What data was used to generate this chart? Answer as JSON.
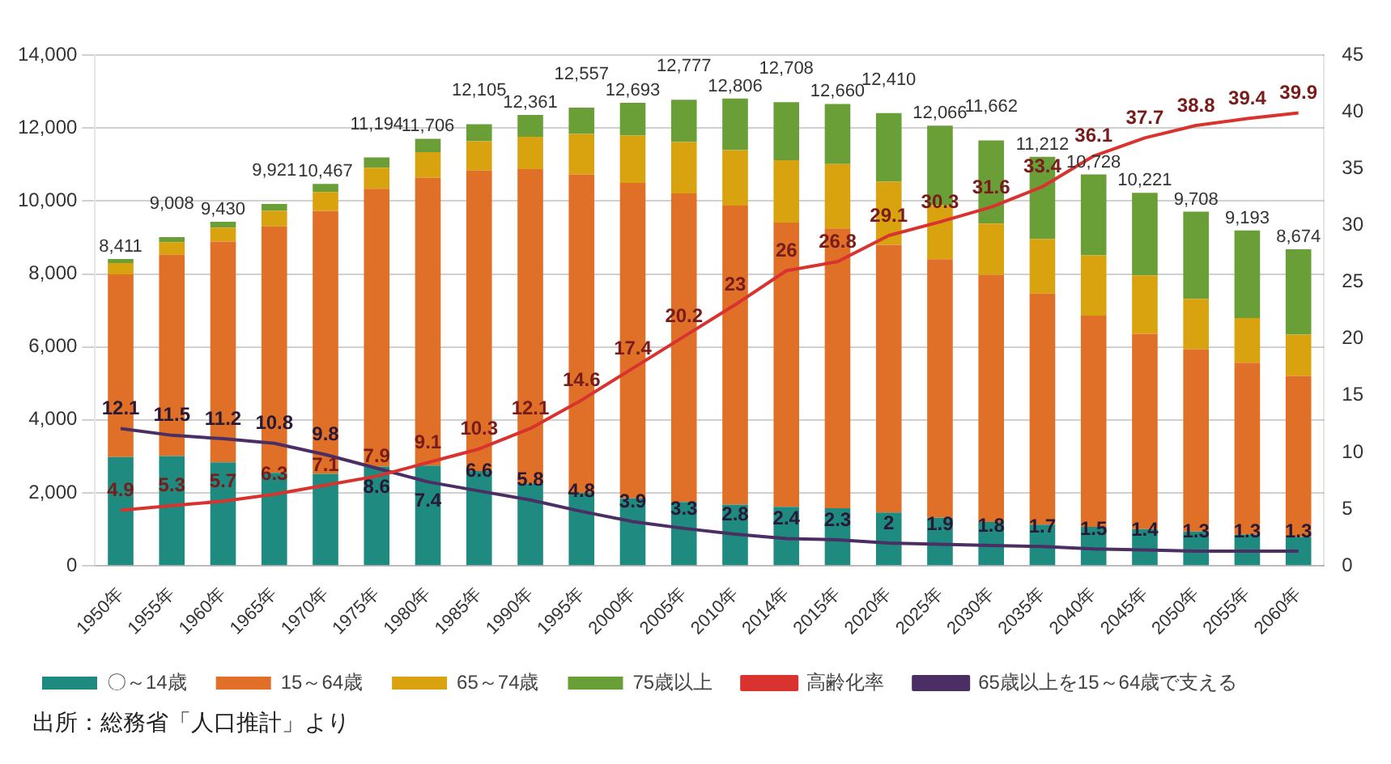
{
  "chart_data": {
    "type": "bar",
    "stacked": true,
    "categories": [
      "1950年",
      "1955年",
      "1960年",
      "1965年",
      "1970年",
      "1975年",
      "1980年",
      "1985年",
      "1990年",
      "1995年",
      "2000年",
      "2005年",
      "2010年",
      "2014年",
      "2015年",
      "2020年",
      "2025年",
      "2030年",
      "2035年",
      "2040年",
      "2045年",
      "2050年",
      "2055年",
      "2060年"
    ],
    "series": [
      {
        "name": "〇～14歳",
        "color": "#1f8a7f",
        "values": [
          2980,
          3010,
          2840,
          2550,
          2520,
          2720,
          2750,
          2600,
          2250,
          2000,
          1850,
          1750,
          1680,
          1620,
          1580,
          1460,
          1320,
          1200,
          1130,
          1070,
          1010,
          940,
          860,
          790
        ]
      },
      {
        "name": "15～64歳",
        "color": "#e07028",
        "values": [
          5011,
          5518,
          6050,
          6751,
          7207,
          7614,
          7886,
          8235,
          8621,
          8727,
          8643,
          8457,
          8196,
          7788,
          7670,
          7340,
          7086,
          6772,
          6332,
          5788,
          5351,
          4998,
          4703,
          4414
        ]
      },
      {
        "name": "65～74歳",
        "color": "#d9a20f",
        "values": [
          310,
          340,
          380,
          430,
          520,
          580,
          700,
          800,
          890,
          1110,
          1300,
          1410,
          1520,
          1710,
          1760,
          1730,
          1480,
          1410,
          1500,
          1650,
          1600,
          1380,
          1230,
          1130
        ]
      },
      {
        "name": "75歳以上",
        "color": "#6a9f38",
        "values": [
          110,
          140,
          160,
          190,
          220,
          280,
          370,
          470,
          600,
          720,
          900,
          1160,
          1410,
          1590,
          1650,
          1880,
          2180,
          2280,
          2250,
          2220,
          2260,
          2390,
          2400,
          2340
        ]
      },
      {
        "name": "高齢化率",
        "type": "line",
        "axis": "y2",
        "color": "#d8332f",
        "marker": "none",
        "values": [
          4.9,
          5.3,
          5.7,
          6.3,
          7.1,
          7.9,
          9.1,
          10.3,
          12.1,
          14.6,
          17.4,
          20.2,
          23,
          26,
          26.8,
          29.1,
          30.3,
          31.6,
          33.4,
          36.1,
          37.7,
          38.8,
          39.4,
          39.9
        ],
        "value_labels": [
          "4.9",
          "5.3",
          "5.7",
          "6.3",
          "7.1",
          "7.9",
          "9.1",
          "10.3",
          "12.1",
          "14.6",
          "17.4",
          "20.2",
          "23",
          "26",
          "26.8",
          "29.1",
          "30.3",
          "31.6",
          "33.4",
          "36.1",
          "37.7",
          "38.8",
          "39.4",
          "39.9"
        ]
      },
      {
        "name": "65歳以上を15～64歳で支える",
        "type": "line",
        "axis": "y2",
        "color": "#4b2e63",
        "marker": "none",
        "values": [
          12.1,
          11.5,
          11.2,
          10.8,
          9.8,
          8.6,
          7.4,
          6.6,
          5.8,
          4.8,
          3.9,
          3.3,
          2.8,
          2.4,
          2.3,
          2,
          1.9,
          1.8,
          1.7,
          1.5,
          1.4,
          1.3,
          1.3,
          1.3
        ],
        "value_labels": [
          "12.1",
          "11.5",
          "11.2",
          "10.8",
          "9.8",
          "8.6",
          "7.4",
          "6.6",
          "5.8",
          "4.8",
          "3.9",
          "3.3",
          "2.8",
          "2.4",
          "2.3",
          "2",
          "1.9",
          "1.8",
          "1.7",
          "1.5",
          "1.4",
          "1.3",
          "1.3",
          "1.3"
        ]
      }
    ],
    "totals": [
      "8,411",
      "9,008",
      "9,430",
      "9,921",
      "10,467",
      "11,194",
      "11,706",
      "12,105",
      "12,361",
      "12,557",
      "12,693",
      "12,777",
      "12,806",
      "12,708",
      "12,660",
      "12,410",
      "12,066",
      "11,662",
      "11,212",
      "10,728",
      "10,221",
      "9,708",
      "9,193",
      "8,674"
    ],
    "ylim": [
      0,
      14000
    ],
    "yticks": [
      {
        "value": 0,
        "label": "0"
      },
      {
        "value": 2000,
        "label": "2,000"
      },
      {
        "value": 4000,
        "label": "4,000"
      },
      {
        "value": 6000,
        "label": "6,000"
      },
      {
        "value": 8000,
        "label": "8,000"
      },
      {
        "value": 10000,
        "label": "10,000"
      },
      {
        "value": 12000,
        "label": "12,000"
      },
      {
        "value": 14000,
        "label": "14,000"
      }
    ],
    "y2lim": [
      0,
      45
    ],
    "y2ticks": [
      0,
      5,
      10,
      15,
      20,
      25,
      30,
      35,
      40,
      45
    ],
    "grid": "y",
    "legend": "bottom",
    "annotations": [
      "出所：総務省「人口推計」より"
    ]
  }
}
